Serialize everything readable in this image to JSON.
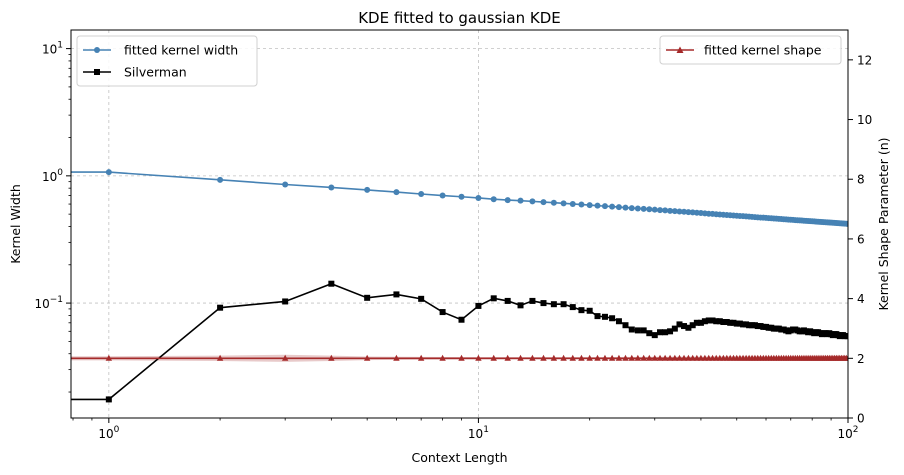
{
  "chart_data": {
    "type": "line",
    "title": "KDE fitted to gaussian KDE",
    "xlabel": "Context Length",
    "ylabel_left": "Kernel Width",
    "ylabel_right": "Kernel Shape Parameter (n)",
    "x_scale": "log",
    "y_left_scale": "log",
    "xlim": [
      0.79,
      100
    ],
    "ylim_left": [
      0.0125,
      14
    ],
    "ylim_right": [
      0,
      13
    ],
    "grid": true,
    "x_ticks": [
      {
        "value": 1,
        "base": "10",
        "exp": "0"
      },
      {
        "value": 10,
        "base": "10",
        "exp": "1"
      },
      {
        "value": 100,
        "base": "10",
        "exp": "2"
      }
    ],
    "y_left_ticks": [
      {
        "value": 0.1,
        "base": "10",
        "exp": "−1"
      },
      {
        "value": 1,
        "base": "10",
        "exp": "0"
      },
      {
        "value": 10,
        "base": "10",
        "exp": "1"
      }
    ],
    "y_right_ticks": [
      {
        "value": 0,
        "label": "0"
      },
      {
        "value": 2,
        "label": "2"
      },
      {
        "value": 4,
        "label": "4"
      },
      {
        "value": 6,
        "label": "6"
      },
      {
        "value": 8,
        "label": "8"
      },
      {
        "value": 10,
        "label": "10"
      },
      {
        "value": 12,
        "label": "12"
      }
    ],
    "legend_left_position": "upper-left",
    "legend_right_position": "upper-right",
    "series": [
      {
        "name": "fitted kernel width",
        "axis": "left",
        "color": "#4682b4",
        "marker": "circle",
        "points": [
          [
            0.1,
            1.07
          ],
          [
            1,
            1.07
          ],
          [
            2,
            0.93
          ],
          [
            3,
            0.855
          ],
          [
            4,
            0.81
          ],
          [
            5,
            0.775
          ],
          [
            6,
            0.745
          ],
          [
            7,
            0.72
          ],
          [
            8,
            0.7
          ],
          [
            9,
            0.685
          ],
          [
            10,
            0.67
          ],
          [
            11,
            0.655
          ],
          [
            12,
            0.645
          ],
          [
            13,
            0.638
          ],
          [
            14,
            0.63
          ],
          [
            15,
            0.622
          ],
          [
            16,
            0.615
          ],
          [
            17,
            0.608
          ],
          [
            18,
            0.601
          ],
          [
            19,
            0.595
          ],
          [
            20,
            0.589
          ],
          [
            21,
            0.583
          ],
          [
            22,
            0.578
          ],
          [
            23,
            0.573
          ],
          [
            24,
            0.568
          ],
          [
            25,
            0.563
          ],
          [
            26,
            0.558
          ],
          [
            27,
            0.554
          ],
          [
            28,
            0.55
          ],
          [
            29,
            0.546
          ],
          [
            30,
            0.542
          ],
          [
            31,
            0.538
          ],
          [
            32,
            0.535
          ],
          [
            33,
            0.531
          ],
          [
            34,
            0.528
          ],
          [
            35,
            0.525
          ],
          [
            36,
            0.522
          ],
          [
            37,
            0.519
          ],
          [
            38,
            0.516
          ],
          [
            39,
            0.513
          ],
          [
            40,
            0.51
          ],
          [
            41,
            0.507
          ],
          [
            42,
            0.504
          ],
          [
            43,
            0.502
          ],
          [
            44,
            0.499
          ],
          [
            45,
            0.497
          ],
          [
            46,
            0.494
          ],
          [
            47,
            0.492
          ],
          [
            48,
            0.49
          ],
          [
            49,
            0.488
          ],
          [
            50,
            0.486
          ],
          [
            51,
            0.484
          ],
          [
            52,
            0.482
          ],
          [
            53,
            0.48
          ],
          [
            54,
            0.478
          ],
          [
            55,
            0.476
          ],
          [
            56,
            0.474
          ],
          [
            57,
            0.472
          ],
          [
            58,
            0.47
          ],
          [
            59,
            0.469
          ],
          [
            60,
            0.467
          ],
          [
            61,
            0.465
          ],
          [
            62,
            0.464
          ],
          [
            63,
            0.462
          ],
          [
            64,
            0.461
          ],
          [
            65,
            0.459
          ],
          [
            66,
            0.458
          ],
          [
            67,
            0.456
          ],
          [
            68,
            0.455
          ],
          [
            69,
            0.453
          ],
          [
            70,
            0.452
          ],
          [
            71,
            0.451
          ],
          [
            72,
            0.449
          ],
          [
            73,
            0.448
          ],
          [
            74,
            0.447
          ],
          [
            75,
            0.446
          ],
          [
            76,
            0.444
          ],
          [
            77,
            0.443
          ],
          [
            78,
            0.442
          ],
          [
            79,
            0.441
          ],
          [
            80,
            0.44
          ],
          [
            81,
            0.439
          ],
          [
            82,
            0.437
          ],
          [
            83,
            0.436
          ],
          [
            84,
            0.435
          ],
          [
            85,
            0.434
          ],
          [
            86,
            0.433
          ],
          [
            87,
            0.432
          ],
          [
            88,
            0.431
          ],
          [
            89,
            0.43
          ],
          [
            90,
            0.429
          ],
          [
            91,
            0.428
          ],
          [
            92,
            0.427
          ],
          [
            93,
            0.426
          ],
          [
            94,
            0.425
          ],
          [
            95,
            0.424
          ],
          [
            96,
            0.423
          ],
          [
            97,
            0.422
          ],
          [
            98,
            0.421
          ],
          [
            99,
            0.42
          ],
          [
            100,
            0.419
          ]
        ]
      },
      {
        "name": "Silverman",
        "axis": "left",
        "color": "#000000",
        "marker": "square",
        "points": [
          [
            0.1,
            0.0175
          ],
          [
            1,
            0.0175
          ],
          [
            2,
            0.092
          ],
          [
            3,
            0.103
          ],
          [
            4,
            0.142
          ],
          [
            5,
            0.11
          ],
          [
            6,
            0.117
          ],
          [
            7,
            0.108
          ],
          [
            8,
            0.085
          ],
          [
            9,
            0.074
          ],
          [
            10,
            0.095
          ],
          [
            11,
            0.109
          ],
          [
            12,
            0.104
          ],
          [
            13,
            0.096
          ],
          [
            14,
            0.104
          ],
          [
            15,
            0.1
          ],
          [
            16,
            0.098
          ],
          [
            17,
            0.098
          ],
          [
            18,
            0.093
          ],
          [
            19,
            0.088
          ],
          [
            20,
            0.087
          ],
          [
            21,
            0.079
          ],
          [
            22,
            0.078
          ],
          [
            23,
            0.076
          ],
          [
            24,
            0.072
          ],
          [
            25,
            0.067
          ],
          [
            26,
            0.062
          ],
          [
            27,
            0.061
          ],
          [
            28,
            0.061
          ],
          [
            29,
            0.058
          ],
          [
            30,
            0.056
          ],
          [
            31,
            0.059
          ],
          [
            32,
            0.059
          ],
          [
            33,
            0.06
          ],
          [
            34,
            0.063
          ],
          [
            35,
            0.068
          ],
          [
            36,
            0.066
          ],
          [
            37,
            0.064
          ],
          [
            38,
            0.067
          ],
          [
            39,
            0.07
          ],
          [
            40,
            0.07
          ],
          [
            41,
            0.072
          ],
          [
            42,
            0.073
          ],
          [
            43,
            0.073
          ],
          [
            44,
            0.072
          ],
          [
            45,
            0.072
          ],
          [
            46,
            0.071
          ],
          [
            47,
            0.071
          ],
          [
            48,
            0.07
          ],
          [
            49,
            0.07
          ],
          [
            50,
            0.069
          ],
          [
            51,
            0.069
          ],
          [
            52,
            0.068
          ],
          [
            53,
            0.068
          ],
          [
            54,
            0.067
          ],
          [
            55,
            0.067
          ],
          [
            56,
            0.067
          ],
          [
            57,
            0.066
          ],
          [
            58,
            0.066
          ],
          [
            59,
            0.065
          ],
          [
            60,
            0.065
          ],
          [
            61,
            0.064
          ],
          [
            62,
            0.064
          ],
          [
            63,
            0.063
          ],
          [
            64,
            0.063
          ],
          [
            65,
            0.063
          ],
          [
            66,
            0.062
          ],
          [
            67,
            0.062
          ],
          [
            68,
            0.061
          ],
          [
            69,
            0.06
          ],
          [
            70,
            0.061
          ],
          [
            71,
            0.062
          ],
          [
            72,
            0.062
          ],
          [
            73,
            0.061
          ],
          [
            74,
            0.06
          ],
          [
            75,
            0.06
          ],
          [
            76,
            0.061
          ],
          [
            77,
            0.06
          ],
          [
            78,
            0.059
          ],
          [
            79,
            0.06
          ],
          [
            80,
            0.059
          ],
          [
            81,
            0.058
          ],
          [
            82,
            0.059
          ],
          [
            83,
            0.059
          ],
          [
            84,
            0.058
          ],
          [
            85,
            0.057
          ],
          [
            86,
            0.058
          ],
          [
            87,
            0.058
          ],
          [
            88,
            0.057
          ],
          [
            89,
            0.058
          ],
          [
            90,
            0.057
          ],
          [
            91,
            0.056
          ],
          [
            92,
            0.057
          ],
          [
            93,
            0.057
          ],
          [
            94,
            0.056
          ],
          [
            95,
            0.055
          ],
          [
            96,
            0.056
          ],
          [
            97,
            0.056
          ],
          [
            98,
            0.055
          ],
          [
            99,
            0.055
          ],
          [
            100,
            0.055
          ]
        ]
      },
      {
        "name": "fitted kernel shape",
        "axis": "right",
        "color": "#a52a2a",
        "marker": "triangle",
        "value": 2.0,
        "band": [
          [
            0.1,
            1.93,
            2.07
          ],
          [
            1,
            1.93,
            2.07
          ],
          [
            2,
            1.91,
            2.09
          ],
          [
            3,
            1.88,
            2.12
          ],
          [
            4,
            1.91,
            2.09
          ],
          [
            5,
            1.94,
            2.06
          ],
          [
            7,
            1.95,
            2.05
          ],
          [
            10,
            1.96,
            2.04
          ],
          [
            20,
            1.96,
            2.04
          ],
          [
            40,
            1.94,
            2.06
          ],
          [
            55,
            1.92,
            2.08
          ],
          [
            70,
            1.93,
            2.07
          ],
          [
            100,
            1.94,
            2.06
          ]
        ],
        "x": [
          1,
          2,
          3,
          4,
          5,
          6,
          7,
          8,
          9,
          10,
          11,
          12,
          13,
          14,
          15,
          16,
          17,
          18,
          19,
          20,
          21,
          22,
          23,
          24,
          25,
          26,
          27,
          28,
          29,
          30,
          31,
          32,
          33,
          34,
          35,
          36,
          37,
          38,
          39,
          40,
          41,
          42,
          43,
          44,
          45,
          46,
          47,
          48,
          49,
          50,
          51,
          52,
          53,
          54,
          55,
          56,
          57,
          58,
          59,
          60,
          61,
          62,
          63,
          64,
          65,
          66,
          67,
          68,
          69,
          70,
          71,
          72,
          73,
          74,
          75,
          76,
          77,
          78,
          79,
          80,
          81,
          82,
          83,
          84,
          85,
          86,
          87,
          88,
          89,
          90,
          91,
          92,
          93,
          94,
          95,
          96,
          97,
          98,
          99,
          100
        ]
      }
    ]
  }
}
